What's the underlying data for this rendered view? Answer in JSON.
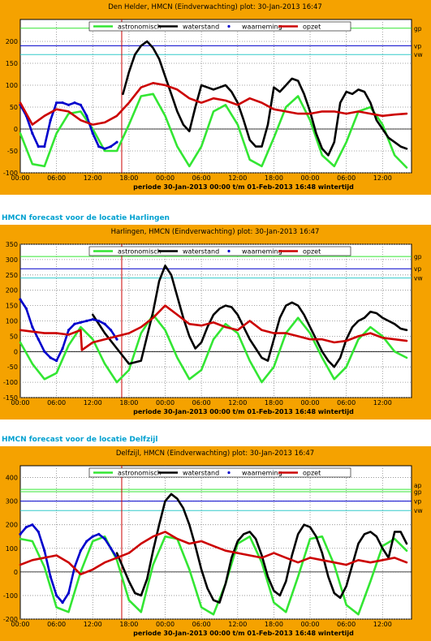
{
  "colors": {
    "panel_bg": "#f5a200",
    "heading": "#00a0d0",
    "astronomisch": "#33e633",
    "waterstand": "#000000",
    "waarneming": "#0000cc",
    "opzet": "#cc0000",
    "now_line": "#cc0000"
  },
  "headings": [
    "HMCN forecast voor de locatie Harlingen",
    "HMCN forecast voor de locatie Delfzijl"
  ],
  "legend_labels": [
    "astronomisch",
    "waterstand",
    "waarneming",
    "opzet"
  ],
  "x_ticks": [
    "00:00",
    "06:00",
    "12:00",
    "18:00",
    "00:00",
    "06:00",
    "12:00",
    "18:00",
    "00:00",
    "06:00",
    "12:00"
  ],
  "x_caption": "periode 30-Jan-2013 00:00 t/m 01-Feb-2013 16:48 wintertijd",
  "chart_data": [
    {
      "type": "line",
      "title": "Den Helder, HMCN (Eindverwachting) plot: 30-Jan-2013 16:47",
      "xlabel": "periode 30-Jan-2013 00:00 t/m 01-Feb-2013 16:48 wintertijd",
      "x_unit": "hours since 30-Jan-2013 00:00",
      "xlim": [
        0,
        64.8
      ],
      "ylim": [
        -100,
        250
      ],
      "y_ticks": [
        "-100",
        "-50",
        "0",
        "50",
        "100",
        "150",
        "200"
      ],
      "y_tick_values": [
        -100,
        -50,
        0,
        50,
        100,
        150,
        200
      ],
      "now_hour": 16.8,
      "reference_lines": [
        {
          "label": "gp",
          "value": 230,
          "color": "#33e633"
        },
        {
          "label": "vp",
          "value": 190,
          "color": "#0000cc"
        },
        {
          "label": "vw",
          "value": 170,
          "color": "#33cccc"
        }
      ],
      "series": [
        {
          "name": "astronomisch",
          "x": [
            0,
            2,
            4,
            6,
            8,
            10,
            12,
            14,
            16,
            18,
            20,
            22,
            24,
            26,
            28,
            30,
            32,
            34,
            36,
            38,
            40,
            42,
            44,
            46,
            48,
            50,
            52,
            54,
            56,
            58,
            60,
            62,
            64
          ],
          "y": [
            -10,
            -80,
            -85,
            -10,
            35,
            40,
            0,
            -50,
            -50,
            10,
            75,
            80,
            30,
            -40,
            -85,
            -40,
            40,
            55,
            10,
            -70,
            -85,
            -20,
            50,
            75,
            20,
            -60,
            -85,
            -30,
            40,
            50,
            10,
            -60,
            -88
          ]
        },
        {
          "name": "waterstand",
          "x": [
            17,
            18,
            19,
            20,
            21,
            22,
            23,
            24,
            25,
            26,
            27,
            28,
            29,
            30,
            31,
            32,
            33,
            34,
            35,
            36,
            37,
            38,
            39,
            40,
            41,
            42,
            43,
            44,
            45,
            46,
            47,
            48,
            49,
            50,
            51,
            52,
            53,
            54,
            55,
            56,
            57,
            58,
            59,
            60,
            61,
            62,
            63,
            64
          ],
          "y": [
            80,
            130,
            170,
            190,
            200,
            185,
            160,
            120,
            80,
            40,
            10,
            -5,
            50,
            100,
            95,
            90,
            95,
            100,
            85,
            60,
            20,
            -25,
            -40,
            -40,
            10,
            95,
            85,
            100,
            115,
            110,
            80,
            40,
            -10,
            -45,
            -60,
            -30,
            60,
            85,
            80,
            90,
            85,
            60,
            20,
            0,
            -20,
            -30,
            -40,
            -45
          ]
        },
        {
          "name": "waarneming",
          "x": [
            0,
            1,
            2,
            3,
            4,
            5,
            6,
            7,
            8,
            9,
            10,
            11,
            12,
            13,
            14,
            15,
            16
          ],
          "y": [
            55,
            30,
            -10,
            -40,
            -40,
            20,
            60,
            60,
            55,
            60,
            55,
            30,
            -10,
            -40,
            -45,
            -40,
            -30
          ]
        },
        {
          "name": "opzet",
          "x": [
            0,
            2,
            4,
            6,
            8,
            10,
            12,
            14,
            16,
            18,
            20,
            22,
            24,
            26,
            28,
            30,
            32,
            34,
            36,
            38,
            40,
            42,
            44,
            46,
            48,
            50,
            52,
            54,
            56,
            58,
            60,
            62,
            64
          ],
          "y": [
            60,
            10,
            30,
            45,
            40,
            20,
            10,
            15,
            30,
            60,
            95,
            105,
            100,
            90,
            70,
            60,
            70,
            65,
            55,
            70,
            60,
            45,
            40,
            35,
            35,
            40,
            40,
            35,
            40,
            35,
            30,
            33,
            35
          ]
        }
      ]
    },
    {
      "type": "line",
      "title": "Harlingen, HMCN (Eindverwachting) plot: 30-Jan-2013 16:47",
      "xlabel": "periode 30-Jan-2013 00:00 t/m 01-Feb-2013 16:48 wintertijd",
      "x_unit": "hours since 30-Jan-2013 00:00",
      "xlim": [
        0,
        64.8
      ],
      "ylim": [
        -150,
        350
      ],
      "y_ticks": [
        "-150",
        "-100",
        "-50",
        "0",
        "50",
        "100",
        "150",
        "200",
        "250",
        "300",
        "350"
      ],
      "y_tick_values": [
        -150,
        -100,
        -50,
        0,
        50,
        100,
        150,
        200,
        250,
        300,
        350
      ],
      "now_hour": 16.8,
      "reference_lines": [
        {
          "label": "gp",
          "value": 310,
          "color": "#33e633"
        },
        {
          "label": "vp",
          "value": 270,
          "color": "#0000cc"
        },
        {
          "label": "vw",
          "value": 240,
          "color": "#33cccc"
        }
      ],
      "series": [
        {
          "name": "astronomisch",
          "x": [
            0,
            2,
            4,
            6,
            8,
            10,
            12,
            14,
            16,
            18,
            20,
            22,
            24,
            26,
            28,
            30,
            32,
            34,
            36,
            38,
            40,
            42,
            44,
            46,
            48,
            50,
            52,
            54,
            56,
            58,
            60,
            62,
            64
          ],
          "y": [
            30,
            -40,
            -90,
            -70,
            20,
            80,
            40,
            -40,
            -100,
            -60,
            60,
            120,
            70,
            -20,
            -90,
            -60,
            40,
            90,
            60,
            -30,
            -100,
            -50,
            60,
            110,
            60,
            -20,
            -90,
            -50,
            40,
            80,
            50,
            0,
            -20
          ]
        },
        {
          "name": "waterstand",
          "x": [
            12,
            14,
            16,
            18,
            20,
            22,
            23,
            24,
            25,
            26,
            27,
            28,
            29,
            30,
            31,
            32,
            33,
            34,
            35,
            36,
            37,
            38,
            39,
            40,
            41,
            42,
            43,
            44,
            45,
            46,
            47,
            48,
            49,
            50,
            51,
            52,
            53,
            54,
            55,
            56,
            57,
            58,
            59,
            60,
            61,
            62,
            63,
            64
          ],
          "y": [
            120,
            60,
            10,
            -40,
            -30,
            130,
            230,
            280,
            250,
            180,
            110,
            50,
            10,
            30,
            80,
            120,
            140,
            150,
            145,
            120,
            80,
            40,
            10,
            -20,
            -30,
            40,
            110,
            150,
            160,
            150,
            120,
            80,
            40,
            0,
            -30,
            -50,
            -20,
            40,
            80,
            100,
            110,
            130,
            125,
            110,
            100,
            90,
            75,
            70
          ]
        },
        {
          "name": "waarneming",
          "x": [
            0,
            1,
            2,
            3,
            4,
            5,
            6,
            7,
            8,
            9,
            10,
            11,
            12,
            13,
            14,
            15,
            16
          ],
          "y": [
            170,
            140,
            80,
            40,
            0,
            -20,
            -30,
            10,
            70,
            90,
            95,
            100,
            105,
            100,
            90,
            70,
            40
          ]
        },
        {
          "name": "opzet",
          "x": [
            0,
            2,
            4,
            6,
            8,
            10,
            10.2,
            12,
            14,
            16,
            18,
            20,
            22,
            24,
            26,
            28,
            30,
            32,
            34,
            36,
            38,
            40,
            42,
            44,
            46,
            48,
            50,
            52,
            54,
            56,
            58,
            60,
            62,
            64
          ],
          "y": [
            70,
            65,
            60,
            60,
            55,
            70,
            5,
            30,
            40,
            50,
            60,
            80,
            110,
            150,
            120,
            90,
            85,
            95,
            80,
            70,
            100,
            70,
            60,
            60,
            50,
            40,
            40,
            30,
            35,
            50,
            60,
            45,
            40,
            35
          ]
        }
      ]
    },
    {
      "type": "line",
      "title": "Delfzijl, HMCN (Eindverwachting) plot: 30-Jan-2013 16:47",
      "xlabel": "periode 30-Jan-2013 00:00 t/m 01-Feb-2013 16:48 wintertijd",
      "x_unit": "hours since 30-Jan-2013 00:00",
      "xlim": [
        0,
        64.8
      ],
      "ylim": [
        -200,
        450
      ],
      "y_ticks": [
        "-200",
        "-100",
        "0",
        "100",
        "200",
        "300",
        "400"
      ],
      "y_tick_values": [
        -200,
        -100,
        0,
        100,
        200,
        300,
        400
      ],
      "now_hour": 16.8,
      "reference_lines": [
        {
          "label": "ap",
          "value": 350,
          "color": "#33e633"
        },
        {
          "label": "gp",
          "value": 340,
          "color": "#33e633"
        },
        {
          "label": "vp",
          "value": 300,
          "color": "#0000cc"
        },
        {
          "label": "vw",
          "value": 260,
          "color": "#33cccc"
        }
      ],
      "series": [
        {
          "name": "astronomisch",
          "x": [
            0,
            2,
            4,
            6,
            8,
            10,
            12,
            14,
            16,
            18,
            20,
            22,
            24,
            26,
            28,
            30,
            32,
            34,
            36,
            38,
            40,
            42,
            44,
            46,
            48,
            50,
            52,
            54,
            56,
            58,
            60,
            62,
            64
          ],
          "y": [
            140,
            130,
            20,
            -150,
            -170,
            0,
            130,
            150,
            50,
            -120,
            -170,
            30,
            150,
            140,
            10,
            -150,
            -180,
            -50,
            120,
            150,
            40,
            -130,
            -170,
            -20,
            140,
            150,
            30,
            -140,
            -180,
            -40,
            110,
            140,
            90
          ]
        },
        {
          "name": "waterstand",
          "x": [
            16,
            18,
            19,
            20,
            21,
            22,
            23,
            24,
            25,
            26,
            27,
            28,
            29,
            30,
            31,
            32,
            33,
            34,
            35,
            36,
            37,
            38,
            39,
            40,
            41,
            42,
            43,
            44,
            45,
            46,
            47,
            48,
            49,
            50,
            51,
            52,
            53,
            54,
            55,
            56,
            57,
            58,
            59,
            60,
            61,
            62,
            63,
            64
          ],
          "y": [
            80,
            -40,
            -90,
            -100,
            -30,
            90,
            200,
            300,
            330,
            310,
            270,
            200,
            110,
            10,
            -70,
            -120,
            -130,
            -50,
            60,
            130,
            160,
            170,
            140,
            70,
            -20,
            -80,
            -100,
            -40,
            70,
            160,
            200,
            190,
            150,
            80,
            -20,
            -90,
            -110,
            -60,
            30,
            120,
            160,
            170,
            150,
            100,
            60,
            170,
            170,
            120
          ]
        },
        {
          "name": "waarneming",
          "x": [
            0,
            1,
            2,
            3,
            4,
            5,
            6,
            7,
            8,
            9,
            10,
            11,
            12,
            13,
            14,
            15,
            16
          ],
          "y": [
            160,
            190,
            200,
            170,
            90,
            -20,
            -100,
            -130,
            -90,
            20,
            90,
            130,
            150,
            160,
            140,
            100,
            60
          ]
        },
        {
          "name": "opzet",
          "x": [
            0,
            2,
            4,
            6,
            8,
            10,
            12,
            14,
            16,
            18,
            20,
            22,
            24,
            26,
            28,
            30,
            32,
            34,
            36,
            38,
            40,
            42,
            44,
            46,
            48,
            50,
            52,
            54,
            56,
            58,
            60,
            62,
            64
          ],
          "y": [
            30,
            50,
            60,
            70,
            40,
            -10,
            10,
            40,
            60,
            80,
            120,
            150,
            170,
            140,
            120,
            130,
            110,
            90,
            80,
            70,
            60,
            80,
            60,
            40,
            60,
            50,
            40,
            30,
            50,
            40,
            50,
            60,
            40
          ]
        }
      ]
    }
  ]
}
